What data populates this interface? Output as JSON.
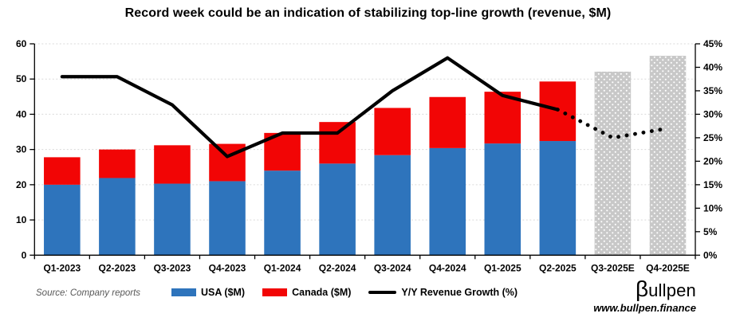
{
  "title": "Record week could be an indication of stabilizing top-line growth (revenue, $M)",
  "source_note": "Source: Company reports",
  "logo": {
    "beta": "β",
    "rest": "ullpen",
    "site": "www.bullpen.finance"
  },
  "legend": {
    "items": [
      {
        "label": "USA ($M)",
        "swatch": "bar",
        "color": "#2E74BC"
      },
      {
        "label": "Canada ($M)",
        "swatch": "bar",
        "color": "#F20505"
      },
      {
        "label": "Y/Y Revenue Growth (%)",
        "swatch": "line",
        "color": "#000000"
      }
    ]
  },
  "chart_data": {
    "type": "combo-stacked-bar-line",
    "categories": [
      "Q1-2023",
      "Q2-2023",
      "Q3-2023",
      "Q4-2023",
      "Q1-2024",
      "Q2-2024",
      "Q3-2024",
      "Q4-2024",
      "Q1-2025",
      "Q2-2025",
      "Q3-2025E",
      "Q4-2025E"
    ],
    "series": [
      {
        "name": "USA ($M)",
        "type": "bar",
        "stack": "revenue",
        "axis": "left",
        "color": "#2E74BC",
        "values": [
          20,
          21.9,
          20.3,
          21,
          24,
          26,
          28.4,
          30.4,
          31.7,
          32.4,
          null,
          null
        ]
      },
      {
        "name": "Canada ($M)",
        "type": "bar",
        "stack": "revenue",
        "axis": "left",
        "color": "#F20505",
        "values": [
          7.8,
          8.1,
          10.9,
          10.6,
          10.7,
          11.8,
          13.4,
          14.5,
          14.7,
          16.9,
          null,
          null
        ]
      },
      {
        "name": "Total revenue estimate ($M)",
        "type": "bar",
        "axis": "left",
        "color": "#C8C8C8",
        "pattern": "white-dots",
        "values": [
          null,
          null,
          null,
          null,
          null,
          null,
          null,
          null,
          null,
          null,
          52.1,
          56.6
        ]
      },
      {
        "name": "Y/Y Revenue Growth (%)",
        "type": "line",
        "style": "solid",
        "axis": "right",
        "color": "#000000",
        "values": [
          38,
          38,
          32,
          21,
          26,
          26,
          35,
          42,
          34,
          31,
          null,
          null
        ]
      },
      {
        "name": "Y/Y Revenue Growth forecast (%)",
        "type": "line",
        "style": "dotted",
        "axis": "right",
        "color": "#000000",
        "values": [
          null,
          null,
          null,
          null,
          null,
          null,
          null,
          null,
          null,
          31,
          25,
          27
        ]
      }
    ],
    "left_axis": {
      "min": 0,
      "max": 60,
      "step": 10,
      "suffix": ""
    },
    "right_axis": {
      "min": 0,
      "max": 45,
      "step": 5,
      "suffix": "%"
    },
    "grid": "horizontal-dotted",
    "legend_position": "bottom"
  }
}
